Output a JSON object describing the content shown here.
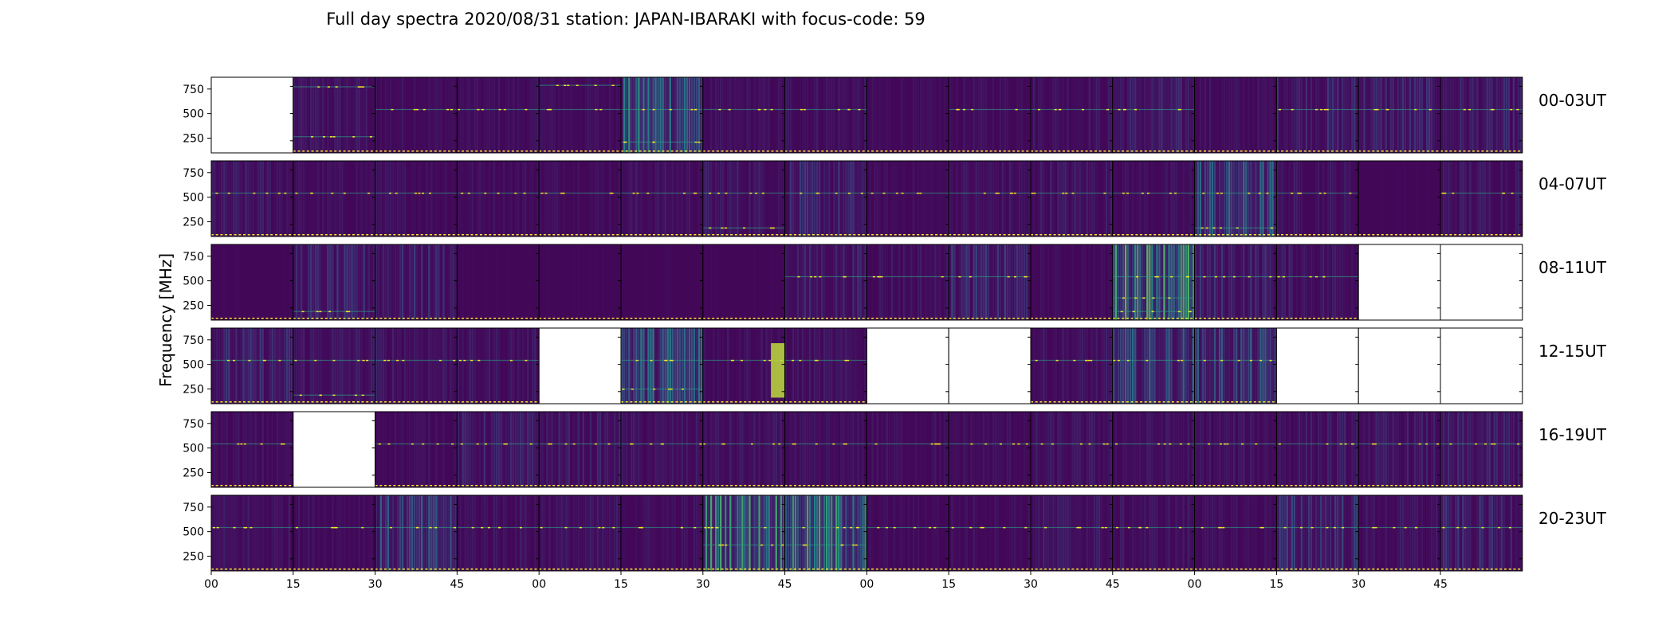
{
  "chart_data": {
    "type": "heatmap",
    "title": "Full day spectra 2020/08/31 station: JAPAN-IBARAKI with focus-code: 59",
    "ylabel": "Frequency [MHz]",
    "xlabel": "",
    "y_ticks": [
      "250",
      "500",
      "750"
    ],
    "x_ticks": [
      "00",
      "15",
      "30",
      "45",
      "00",
      "15",
      "30",
      "45",
      "00",
      "15",
      "30",
      "45",
      "00",
      "15",
      "30",
      "45"
    ],
    "colormap": [
      "#440154",
      "#3b528b",
      "#21918c",
      "#5ec962",
      "#fde725"
    ],
    "rows": [
      {
        "label": "00-03UT",
        "panels": [
          {
            "status": "empty"
          },
          {
            "status": "data",
            "level": 0.15,
            "lines": [
              0.22,
              0.88
            ]
          },
          {
            "status": "data",
            "level": 0.12,
            "lines": [
              0.58
            ]
          },
          {
            "status": "data",
            "level": 0.12,
            "lines": [
              0.58
            ]
          },
          {
            "status": "data",
            "level": 0.12,
            "lines": [
              0.58,
              0.9
            ]
          },
          {
            "status": "data",
            "level": 0.4,
            "lines": [
              0.58,
              0.15
            ]
          },
          {
            "status": "data",
            "level": 0.12,
            "lines": [
              0.58
            ]
          },
          {
            "status": "data",
            "level": 0.14,
            "lines": [
              0.58
            ]
          },
          {
            "status": "data",
            "level": 0.1,
            "lines": []
          },
          {
            "status": "data",
            "level": 0.12,
            "lines": [
              0.58
            ]
          },
          {
            "status": "data",
            "level": 0.14,
            "lines": [
              0.58
            ]
          },
          {
            "status": "data",
            "level": 0.18,
            "lines": [
              0.58
            ]
          },
          {
            "status": "data",
            "level": 0.12,
            "lines": []
          },
          {
            "status": "data",
            "level": 0.2,
            "lines": [
              0.58
            ]
          },
          {
            "status": "data",
            "level": 0.2,
            "lines": [
              0.58
            ]
          },
          {
            "status": "data",
            "level": 0.18,
            "lines": [
              0.58
            ]
          }
        ]
      },
      {
        "label": "04-07UT",
        "panels": [
          {
            "status": "data",
            "level": 0.16,
            "lines": [
              0.58
            ]
          },
          {
            "status": "data",
            "level": 0.12,
            "lines": [
              0.58
            ]
          },
          {
            "status": "data",
            "level": 0.12,
            "lines": [
              0.58
            ]
          },
          {
            "status": "data",
            "level": 0.12,
            "lines": [
              0.58
            ]
          },
          {
            "status": "data",
            "level": 0.12,
            "lines": [
              0.58
            ]
          },
          {
            "status": "data",
            "level": 0.14,
            "lines": [
              0.58
            ]
          },
          {
            "status": "data",
            "level": 0.16,
            "lines": [
              0.58,
              0.12
            ]
          },
          {
            "status": "data",
            "level": 0.2,
            "lines": [
              0.58
            ]
          },
          {
            "status": "data",
            "level": 0.1,
            "lines": [
              0.58
            ]
          },
          {
            "status": "data",
            "level": 0.14,
            "lines": [
              0.58
            ]
          },
          {
            "status": "data",
            "level": 0.16,
            "lines": [
              0.58
            ]
          },
          {
            "status": "data",
            "level": 0.12,
            "lines": [
              0.58
            ]
          },
          {
            "status": "data",
            "level": 0.32,
            "lines": [
              0.58,
              0.12
            ]
          },
          {
            "status": "data",
            "level": 0.14,
            "lines": [
              0.58
            ]
          },
          {
            "status": "data",
            "level": 0.06,
            "lines": []
          },
          {
            "status": "data",
            "level": 0.16,
            "lines": [
              0.58
            ]
          }
        ]
      },
      {
        "label": "08-11UT",
        "panels": [
          {
            "status": "data",
            "level": 0.06,
            "lines": []
          },
          {
            "status": "data",
            "level": 0.2,
            "lines": [
              0.12
            ]
          },
          {
            "status": "data",
            "level": 0.2,
            "lines": []
          },
          {
            "status": "data",
            "level": 0.06,
            "lines": []
          },
          {
            "status": "data",
            "level": 0.06,
            "lines": []
          },
          {
            "status": "data",
            "level": 0.06,
            "lines": []
          },
          {
            "status": "data",
            "level": 0.06,
            "lines": []
          },
          {
            "status": "data",
            "level": 0.18,
            "lines": [
              0.58
            ]
          },
          {
            "status": "data",
            "level": 0.14,
            "lines": [
              0.58
            ]
          },
          {
            "status": "data",
            "level": 0.22,
            "lines": [
              0.58
            ]
          },
          {
            "status": "data",
            "level": 0.1,
            "lines": []
          },
          {
            "status": "data",
            "level": 0.55,
            "lines": [
              0.58,
              0.12,
              0.3
            ]
          },
          {
            "status": "data",
            "level": 0.2,
            "lines": [
              0.58
            ]
          },
          {
            "status": "data",
            "level": 0.16,
            "lines": [
              0.58
            ]
          },
          {
            "status": "empty"
          },
          {
            "status": "empty"
          }
        ]
      },
      {
        "label": "12-15UT",
        "panels": [
          {
            "status": "data",
            "level": 0.2,
            "lines": [
              0.58
            ]
          },
          {
            "status": "data",
            "level": 0.16,
            "lines": [
              0.58,
              0.12
            ]
          },
          {
            "status": "data",
            "level": 0.16,
            "lines": [
              0.58
            ]
          },
          {
            "status": "data",
            "level": 0.14,
            "lines": [
              0.58
            ]
          },
          {
            "status": "empty"
          },
          {
            "status": "data",
            "level": 0.36,
            "lines": [
              0.58,
              0.2
            ]
          },
          {
            "status": "data",
            "level": 0.14,
            "lines": [
              0.58
            ],
            "burst": true
          },
          {
            "status": "data",
            "level": 0.14,
            "lines": [
              0.58
            ]
          },
          {
            "status": "empty"
          },
          {
            "status": "empty"
          },
          {
            "status": "data",
            "level": 0.14,
            "lines": [
              0.58
            ]
          },
          {
            "status": "data",
            "level": 0.3,
            "lines": [
              0.58
            ]
          },
          {
            "status": "data",
            "level": 0.28,
            "lines": [
              0.58
            ]
          },
          {
            "status": "empty"
          },
          {
            "status": "empty"
          },
          {
            "status": "empty"
          }
        ]
      },
      {
        "label": "16-19UT",
        "panels": [
          {
            "status": "data",
            "level": 0.12,
            "lines": [
              0.58
            ]
          },
          {
            "status": "empty"
          },
          {
            "status": "data",
            "level": 0.12,
            "lines": [
              0.58
            ]
          },
          {
            "status": "data",
            "level": 0.18,
            "lines": [
              0.58
            ]
          },
          {
            "status": "data",
            "level": 0.16,
            "lines": [
              0.58
            ]
          },
          {
            "status": "data",
            "level": 0.14,
            "lines": [
              0.58
            ]
          },
          {
            "status": "data",
            "level": 0.14,
            "lines": [
              0.58
            ]
          },
          {
            "status": "data",
            "level": 0.12,
            "lines": [
              0.58
            ]
          },
          {
            "status": "data",
            "level": 0.12,
            "lines": [
              0.58
            ]
          },
          {
            "status": "data",
            "level": 0.12,
            "lines": [
              0.58
            ]
          },
          {
            "status": "data",
            "level": 0.14,
            "lines": [
              0.58
            ]
          },
          {
            "status": "data",
            "level": 0.14,
            "lines": [
              0.58
            ]
          },
          {
            "status": "data",
            "level": 0.14,
            "lines": [
              0.58
            ]
          },
          {
            "status": "data",
            "level": 0.16,
            "lines": [
              0.58
            ]
          },
          {
            "status": "data",
            "level": 0.16,
            "lines": [
              0.58
            ]
          },
          {
            "status": "data",
            "level": 0.18,
            "lines": [
              0.58
            ]
          }
        ]
      },
      {
        "label": "20-23UT",
        "panels": [
          {
            "status": "data",
            "level": 0.14,
            "lines": [
              0.58
            ]
          },
          {
            "status": "data",
            "level": 0.12,
            "lines": [
              0.58
            ]
          },
          {
            "status": "data",
            "level": 0.28,
            "lines": [
              0.58
            ]
          },
          {
            "status": "data",
            "level": 0.14,
            "lines": [
              0.58
            ]
          },
          {
            "status": "data",
            "level": 0.14,
            "lines": [
              0.58
            ]
          },
          {
            "status": "data",
            "level": 0.12,
            "lines": [
              0.58
            ]
          },
          {
            "status": "data",
            "level": 0.5,
            "lines": [
              0.58,
              0.35
            ]
          },
          {
            "status": "data",
            "level": 0.48,
            "lines": [
              0.58,
              0.35
            ]
          },
          {
            "status": "data",
            "level": 0.1,
            "lines": [
              0.58
            ]
          },
          {
            "status": "data",
            "level": 0.12,
            "lines": [
              0.58
            ]
          },
          {
            "status": "data",
            "level": 0.16,
            "lines": [
              0.58
            ]
          },
          {
            "status": "data",
            "level": 0.14,
            "lines": [
              0.58
            ]
          },
          {
            "status": "data",
            "level": 0.12,
            "lines": [
              0.58
            ]
          },
          {
            "status": "data",
            "level": 0.24,
            "lines": [
              0.58
            ]
          },
          {
            "status": "data",
            "level": 0.14,
            "lines": [
              0.58
            ]
          },
          {
            "status": "data",
            "level": 0.2,
            "lines": [
              0.58
            ]
          }
        ]
      }
    ]
  }
}
